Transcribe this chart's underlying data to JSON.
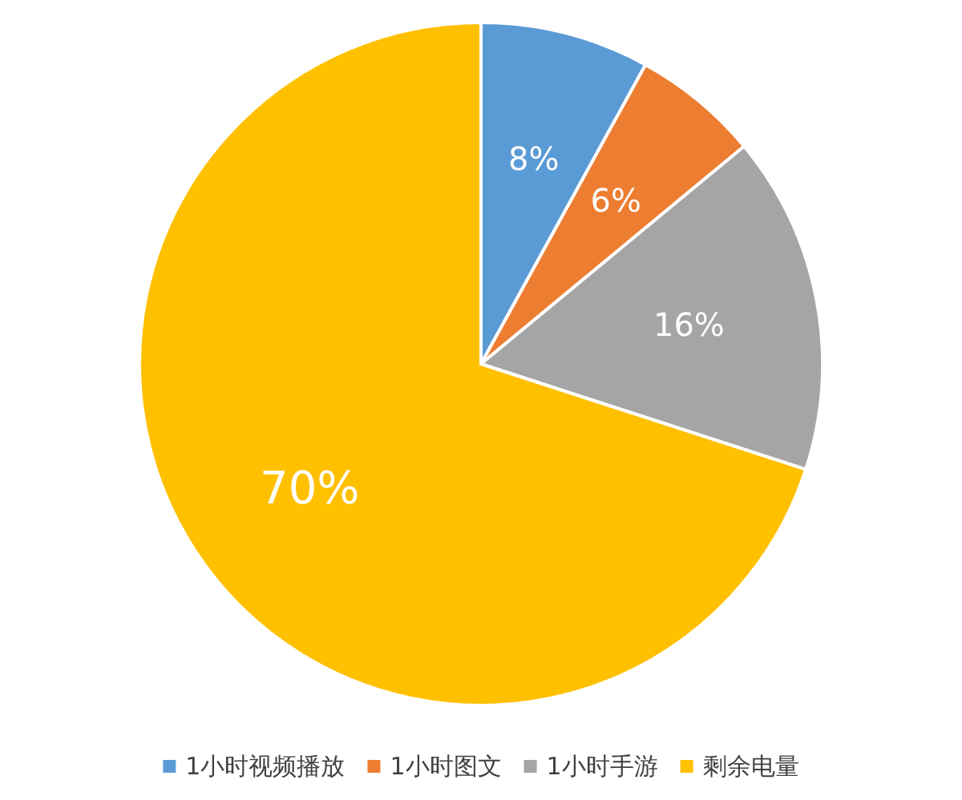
{
  "chart_data": {
    "type": "pie",
    "categories": [
      "1小时视频播放",
      "1小时图文",
      "1小时手游",
      "剩余电量"
    ],
    "values": [
      8,
      6,
      16,
      70
    ],
    "colors": [
      "#5b9bd5",
      "#ed7d31",
      "#a5a5a5",
      "#ffc000"
    ],
    "value_labels": [
      "8%",
      "6%",
      "16%",
      "70%"
    ],
    "legend": "bottom"
  }
}
